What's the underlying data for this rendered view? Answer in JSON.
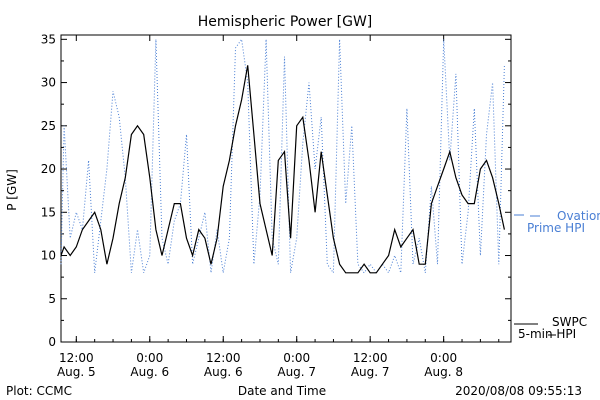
{
  "chart_data": {
    "type": "line",
    "title": "Hemispheric Power [GW]",
    "ylabel": "P [GW]",
    "xlabel": "Date and Time",
    "ylim": [
      0,
      35.5
    ],
    "xlim": [
      "2020-08-05 09:30",
      "2020-08-08 11:00"
    ],
    "yticks": [
      0,
      5,
      10,
      15,
      20,
      25,
      30,
      35
    ],
    "xticks": [
      {
        "x": "2020-08-05 12:00",
        "line1": "12:00",
        "line2": "Aug. 5"
      },
      {
        "x": "2020-08-06 00:00",
        "line1": "0:00",
        "line2": "Aug. 6"
      },
      {
        "x": "2020-08-06 12:00",
        "line1": "12:00",
        "line2": "Aug. 6"
      },
      {
        "x": "2020-08-07 00:00",
        "line1": "0:00",
        "line2": "Aug. 7"
      },
      {
        "x": "2020-08-07 12:00",
        "line1": "12:00",
        "line2": "Aug. 7"
      },
      {
        "x": "2020-08-08 00:00",
        "line1": "0:00",
        "line2": "Aug. 8"
      }
    ],
    "grid": false,
    "legend_position": "right",
    "footer": {
      "left": "Plot: CCMC",
      "right": "2020/08/08 09:55:13"
    },
    "series": [
      {
        "name_line1": "Ovation",
        "name_line2": "Prime HPI",
        "color": "#4a7fd4",
        "style": "dotted",
        "x": [
          "2020-08-05 09:30",
          "2020-08-05 10:00",
          "2020-08-05 11:00",
          "2020-08-05 12:00",
          "2020-08-05 13:00",
          "2020-08-05 14:00",
          "2020-08-05 15:00",
          "2020-08-05 16:00",
          "2020-08-05 17:00",
          "2020-08-05 18:00",
          "2020-08-05 19:00",
          "2020-08-05 20:00",
          "2020-08-05 21:00",
          "2020-08-05 22:00",
          "2020-08-05 23:00",
          "2020-08-06 00:00",
          "2020-08-06 01:00",
          "2020-08-06 02:00",
          "2020-08-06 03:00",
          "2020-08-06 04:00",
          "2020-08-06 05:00",
          "2020-08-06 06:00",
          "2020-08-06 07:00",
          "2020-08-06 08:00",
          "2020-08-06 09:00",
          "2020-08-06 10:00",
          "2020-08-06 11:00",
          "2020-08-06 12:00",
          "2020-08-06 13:00",
          "2020-08-06 14:00",
          "2020-08-06 15:00",
          "2020-08-06 16:00",
          "2020-08-06 17:00",
          "2020-08-06 18:00",
          "2020-08-06 19:00",
          "2020-08-06 20:00",
          "2020-08-06 21:00",
          "2020-08-06 22:00",
          "2020-08-06 23:00",
          "2020-08-07 00:00",
          "2020-08-07 01:00",
          "2020-08-07 02:00",
          "2020-08-07 03:00",
          "2020-08-07 04:00",
          "2020-08-07 05:00",
          "2020-08-07 06:00",
          "2020-08-07 07:00",
          "2020-08-07 08:00",
          "2020-08-07 09:00",
          "2020-08-07 10:00",
          "2020-08-07 11:00",
          "2020-08-07 12:00",
          "2020-08-07 13:00",
          "2020-08-07 14:00",
          "2020-08-07 15:00",
          "2020-08-07 16:00",
          "2020-08-07 17:00",
          "2020-08-07 18:00",
          "2020-08-07 19:00",
          "2020-08-07 20:00",
          "2020-08-07 21:00",
          "2020-08-07 22:00",
          "2020-08-07 23:00",
          "2020-08-08 00:00",
          "2020-08-08 01:00",
          "2020-08-08 02:00",
          "2020-08-08 03:00",
          "2020-08-08 04:00",
          "2020-08-08 05:00",
          "2020-08-08 06:00",
          "2020-08-08 07:00",
          "2020-08-08 08:00",
          "2020-08-08 09:00",
          "2020-08-08 09:55"
        ],
        "y": [
          9,
          25,
          12,
          15,
          13,
          21,
          8,
          14,
          20,
          29,
          26,
          19,
          8,
          13,
          8,
          10,
          35,
          12,
          9,
          14,
          16,
          24,
          9,
          12,
          15,
          8,
          13,
          8,
          12,
          34,
          35,
          30,
          9,
          17,
          35,
          12,
          9,
          33,
          8,
          12,
          23,
          30,
          20,
          26,
          9,
          8,
          35,
          16,
          25,
          9,
          8,
          9,
          8,
          9,
          8,
          10,
          8,
          27,
          9,
          12,
          8,
          18,
          9,
          35,
          21,
          31,
          9,
          15,
          27,
          10,
          24,
          30,
          9,
          32
        ]
      },
      {
        "name_line1": "SWPC",
        "name_line2": "5-min HPI",
        "color": "#000000",
        "style": "solid",
        "x": [
          "2020-08-05 09:30",
          "2020-08-05 10:00",
          "2020-08-05 11:00",
          "2020-08-05 12:00",
          "2020-08-05 13:00",
          "2020-08-05 14:00",
          "2020-08-05 15:00",
          "2020-08-05 16:00",
          "2020-08-05 17:00",
          "2020-08-05 18:00",
          "2020-08-05 19:00",
          "2020-08-05 20:00",
          "2020-08-05 21:00",
          "2020-08-05 22:00",
          "2020-08-05 23:00",
          "2020-08-06 00:00",
          "2020-08-06 01:00",
          "2020-08-06 02:00",
          "2020-08-06 03:00",
          "2020-08-06 04:00",
          "2020-08-06 05:00",
          "2020-08-06 06:00",
          "2020-08-06 07:00",
          "2020-08-06 08:00",
          "2020-08-06 09:00",
          "2020-08-06 10:00",
          "2020-08-06 11:00",
          "2020-08-06 12:00",
          "2020-08-06 13:00",
          "2020-08-06 14:00",
          "2020-08-06 15:00",
          "2020-08-06 16:00",
          "2020-08-06 17:00",
          "2020-08-06 18:00",
          "2020-08-06 19:00",
          "2020-08-06 20:00",
          "2020-08-06 21:00",
          "2020-08-06 22:00",
          "2020-08-06 23:00",
          "2020-08-07 00:00",
          "2020-08-07 01:00",
          "2020-08-07 02:00",
          "2020-08-07 03:00",
          "2020-08-07 04:00",
          "2020-08-07 05:00",
          "2020-08-07 06:00",
          "2020-08-07 07:00",
          "2020-08-07 08:00",
          "2020-08-07 09:00",
          "2020-08-07 10:00",
          "2020-08-07 11:00",
          "2020-08-07 12:00",
          "2020-08-07 13:00",
          "2020-08-07 14:00",
          "2020-08-07 15:00",
          "2020-08-07 16:00",
          "2020-08-07 17:00",
          "2020-08-07 18:00",
          "2020-08-07 19:00",
          "2020-08-07 20:00",
          "2020-08-07 21:00",
          "2020-08-07 22:00",
          "2020-08-07 23:00",
          "2020-08-08 00:00",
          "2020-08-08 01:00",
          "2020-08-08 02:00",
          "2020-08-08 03:00",
          "2020-08-08 04:00",
          "2020-08-08 05:00",
          "2020-08-08 06:00",
          "2020-08-08 07:00",
          "2020-08-08 08:00",
          "2020-08-08 09:00",
          "2020-08-08 09:55"
        ],
        "y": [
          10,
          11,
          10,
          11,
          13,
          14,
          15,
          13,
          9,
          12,
          16,
          19,
          24,
          25,
          24,
          19,
          13,
          10,
          13,
          16,
          16,
          12,
          10,
          13,
          12,
          9,
          12,
          18,
          21,
          25,
          28,
          32,
          24,
          16,
          13,
          10,
          21,
          22,
          12,
          25,
          26,
          21,
          15,
          22,
          17,
          12,
          9,
          8,
          8,
          8,
          9,
          8,
          8,
          9,
          10,
          13,
          11,
          12,
          13,
          9,
          9,
          16,
          18,
          20,
          22,
          19,
          17,
          16,
          16,
          20,
          21,
          19,
          16,
          13
        ]
      }
    ]
  }
}
